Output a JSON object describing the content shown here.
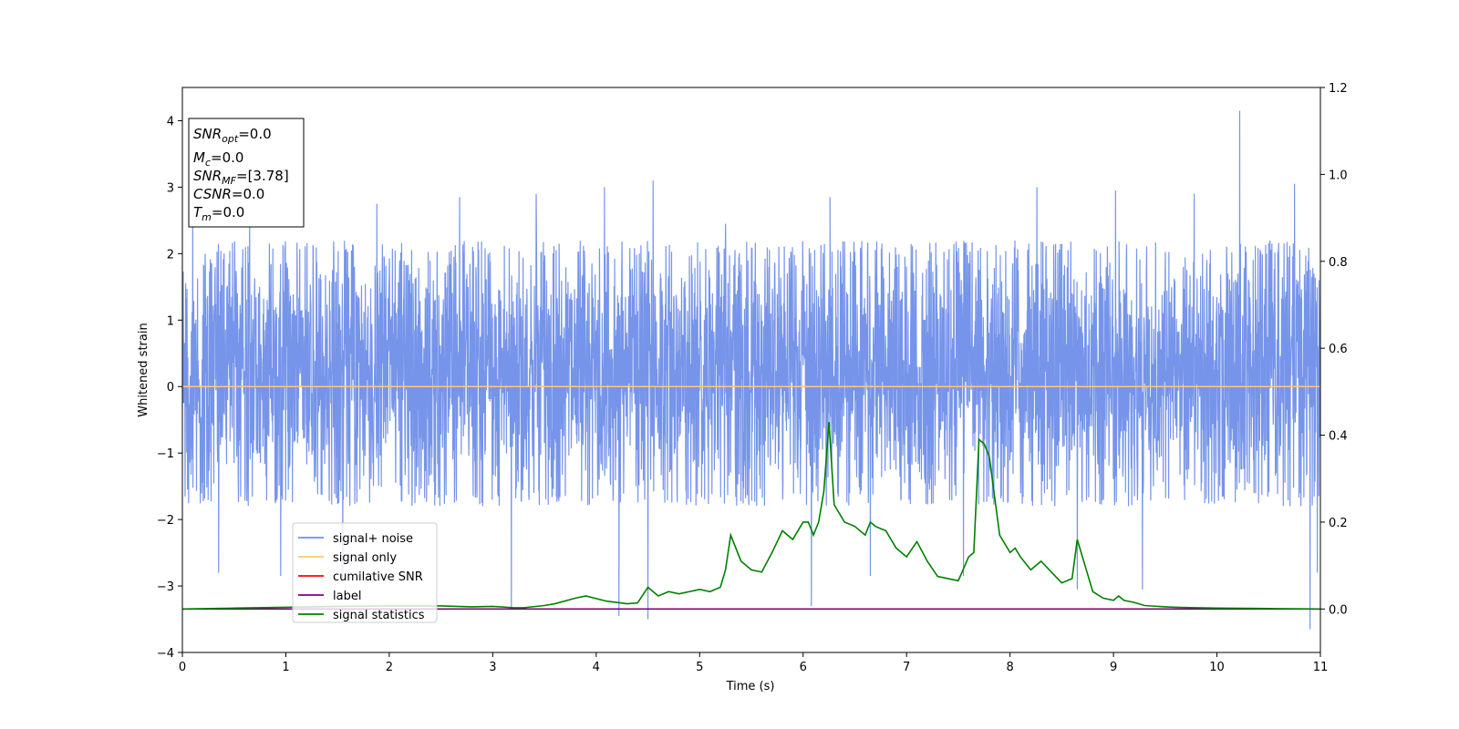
{
  "chart_data": {
    "type": "line",
    "xlabel": "Time (s)",
    "ylabel": "Whitened strain",
    "xlim": [
      0,
      11
    ],
    "ylim_left": [
      -4,
      4.5
    ],
    "ylim_right": [
      -0.1,
      1.2
    ],
    "x_ticks": [
      "0",
      "1",
      "2",
      "3",
      "4",
      "5",
      "6",
      "7",
      "8",
      "9",
      "10",
      "11"
    ],
    "y_left_ticks": [
      "4",
      "3",
      "2",
      "1",
      "0",
      "−1",
      "−2",
      "−3",
      "−4"
    ],
    "y_right_ticks": [
      "1.2",
      "1.0",
      "0.8",
      "0.6",
      "0.4",
      "0.2",
      "0.0"
    ],
    "annotation": {
      "snr_opt": {
        "base": "SNR",
        "sub": "opt",
        "value": "=0.0"
      },
      "mc": {
        "base": "M",
        "sub": "c",
        "value": "=0.0"
      },
      "snr_mf": {
        "base": "SNR",
        "sub": "MF",
        "value": "=[3.78]"
      },
      "csnr": {
        "base": "CSNR",
        "value": "=0.0"
      },
      "tm": {
        "base": "T",
        "sub": "m",
        "value": "=0.0"
      }
    },
    "legend": {
      "placement": "lower-left",
      "entries": [
        {
          "label": "signal+ noise",
          "color": "#6f8ee8"
        },
        {
          "label": "signal only",
          "color": "#ffc870"
        },
        {
          "label": "cumilative SNR",
          "color": "#ff0000"
        },
        {
          "label": "label",
          "color": "#800080"
        },
        {
          "label": "signal statistics",
          "color": "#008000"
        }
      ]
    },
    "series": [
      {
        "name": "signal+ noise",
        "axis": "left",
        "color": "#6f8ee8",
        "style": "dense noise band",
        "typical_range": [
          -1.8,
          2.2
        ],
        "peaks": [
          {
            "x": 0.1,
            "y": 2.6
          },
          {
            "x": 0.65,
            "y": 2.6
          },
          {
            "x": 1.88,
            "y": 2.75
          },
          {
            "x": 2.68,
            "y": 2.85
          },
          {
            "x": 3.42,
            "y": 2.9
          },
          {
            "x": 4.08,
            "y": 3.0
          },
          {
            "x": 4.55,
            "y": 3.1
          },
          {
            "x": 5.25,
            "y": 2.45
          },
          {
            "x": 6.26,
            "y": 2.85
          },
          {
            "x": 6.65,
            "y": 2.95
          },
          {
            "x": 7.55,
            "y": 2.95
          },
          {
            "x": 8.26,
            "y": 3.0
          },
          {
            "x": 9.02,
            "y": 2.95
          },
          {
            "x": 9.78,
            "y": 2.9
          },
          {
            "x": 10.22,
            "y": 4.15
          },
          {
            "x": 10.75,
            "y": 3.05
          }
        ],
        "troughs": [
          {
            "x": 0.35,
            "y": -2.8
          },
          {
            "x": 0.95,
            "y": -2.85
          },
          {
            "x": 1.55,
            "y": -2.95
          },
          {
            "x": 3.18,
            "y": -3.35
          },
          {
            "x": 4.22,
            "y": -3.45
          },
          {
            "x": 4.5,
            "y": -3.5
          },
          {
            "x": 6.08,
            "y": -3.3
          },
          {
            "x": 6.65,
            "y": -2.85
          },
          {
            "x": 7.55,
            "y": -2.85
          },
          {
            "x": 8.65,
            "y": -3.05
          },
          {
            "x": 9.28,
            "y": -3.05
          },
          {
            "x": 10.9,
            "y": -3.65
          },
          {
            "x": 10.97,
            "y": -2.8
          }
        ]
      },
      {
        "name": "signal only",
        "axis": "left",
        "color": "#ffc870",
        "x": [
          0,
          11
        ],
        "y": [
          0,
          0
        ]
      },
      {
        "name": "label",
        "axis": "right",
        "color": "#800080",
        "x": [
          0,
          11
        ],
        "y": [
          0.0,
          0.0
        ]
      },
      {
        "name": "signal statistics",
        "axis": "right",
        "color": "#008000",
        "x": [
          0,
          0.5,
          1.0,
          1.5,
          2.0,
          2.5,
          2.8,
          3.0,
          3.2,
          3.3,
          3.5,
          3.6,
          3.8,
          3.9,
          4.1,
          4.3,
          4.4,
          4.5,
          4.6,
          4.7,
          4.8,
          4.9,
          5.0,
          5.1,
          5.2,
          5.25,
          5.3,
          5.4,
          5.5,
          5.6,
          5.7,
          5.8,
          5.9,
          6.0,
          6.05,
          6.1,
          6.15,
          6.2,
          6.25,
          6.3,
          6.4,
          6.5,
          6.6,
          6.65,
          6.7,
          6.8,
          6.9,
          7.0,
          7.1,
          7.2,
          7.3,
          7.4,
          7.5,
          7.6,
          7.65,
          7.7,
          7.75,
          7.8,
          7.9,
          8.0,
          8.05,
          8.1,
          8.2,
          8.3,
          8.4,
          8.5,
          8.6,
          8.65,
          8.7,
          8.8,
          8.9,
          9.0,
          9.05,
          9.1,
          9.2,
          9.3,
          9.5,
          9.6,
          9.8,
          10.0,
          10.5,
          11.0
        ],
        "y": [
          0.0,
          0.002,
          0.004,
          0.006,
          0.007,
          0.007,
          0.005,
          0.006,
          0.003,
          0.003,
          0.008,
          0.012,
          0.025,
          0.03,
          0.018,
          0.012,
          0.014,
          0.05,
          0.03,
          0.04,
          0.035,
          0.04,
          0.045,
          0.04,
          0.05,
          0.09,
          0.17,
          0.11,
          0.09,
          0.085,
          0.13,
          0.18,
          0.16,
          0.2,
          0.2,
          0.17,
          0.2,
          0.27,
          0.43,
          0.24,
          0.2,
          0.19,
          0.17,
          0.2,
          0.19,
          0.18,
          0.14,
          0.12,
          0.155,
          0.11,
          0.075,
          0.07,
          0.065,
          0.12,
          0.13,
          0.39,
          0.38,
          0.35,
          0.17,
          0.13,
          0.14,
          0.12,
          0.09,
          0.11,
          0.085,
          0.06,
          0.07,
          0.16,
          0.12,
          0.04,
          0.025,
          0.02,
          0.03,
          0.02,
          0.015,
          0.008,
          0.005,
          0.004,
          0.003,
          0.002,
          0.001,
          0.0
        ]
      }
    ]
  }
}
